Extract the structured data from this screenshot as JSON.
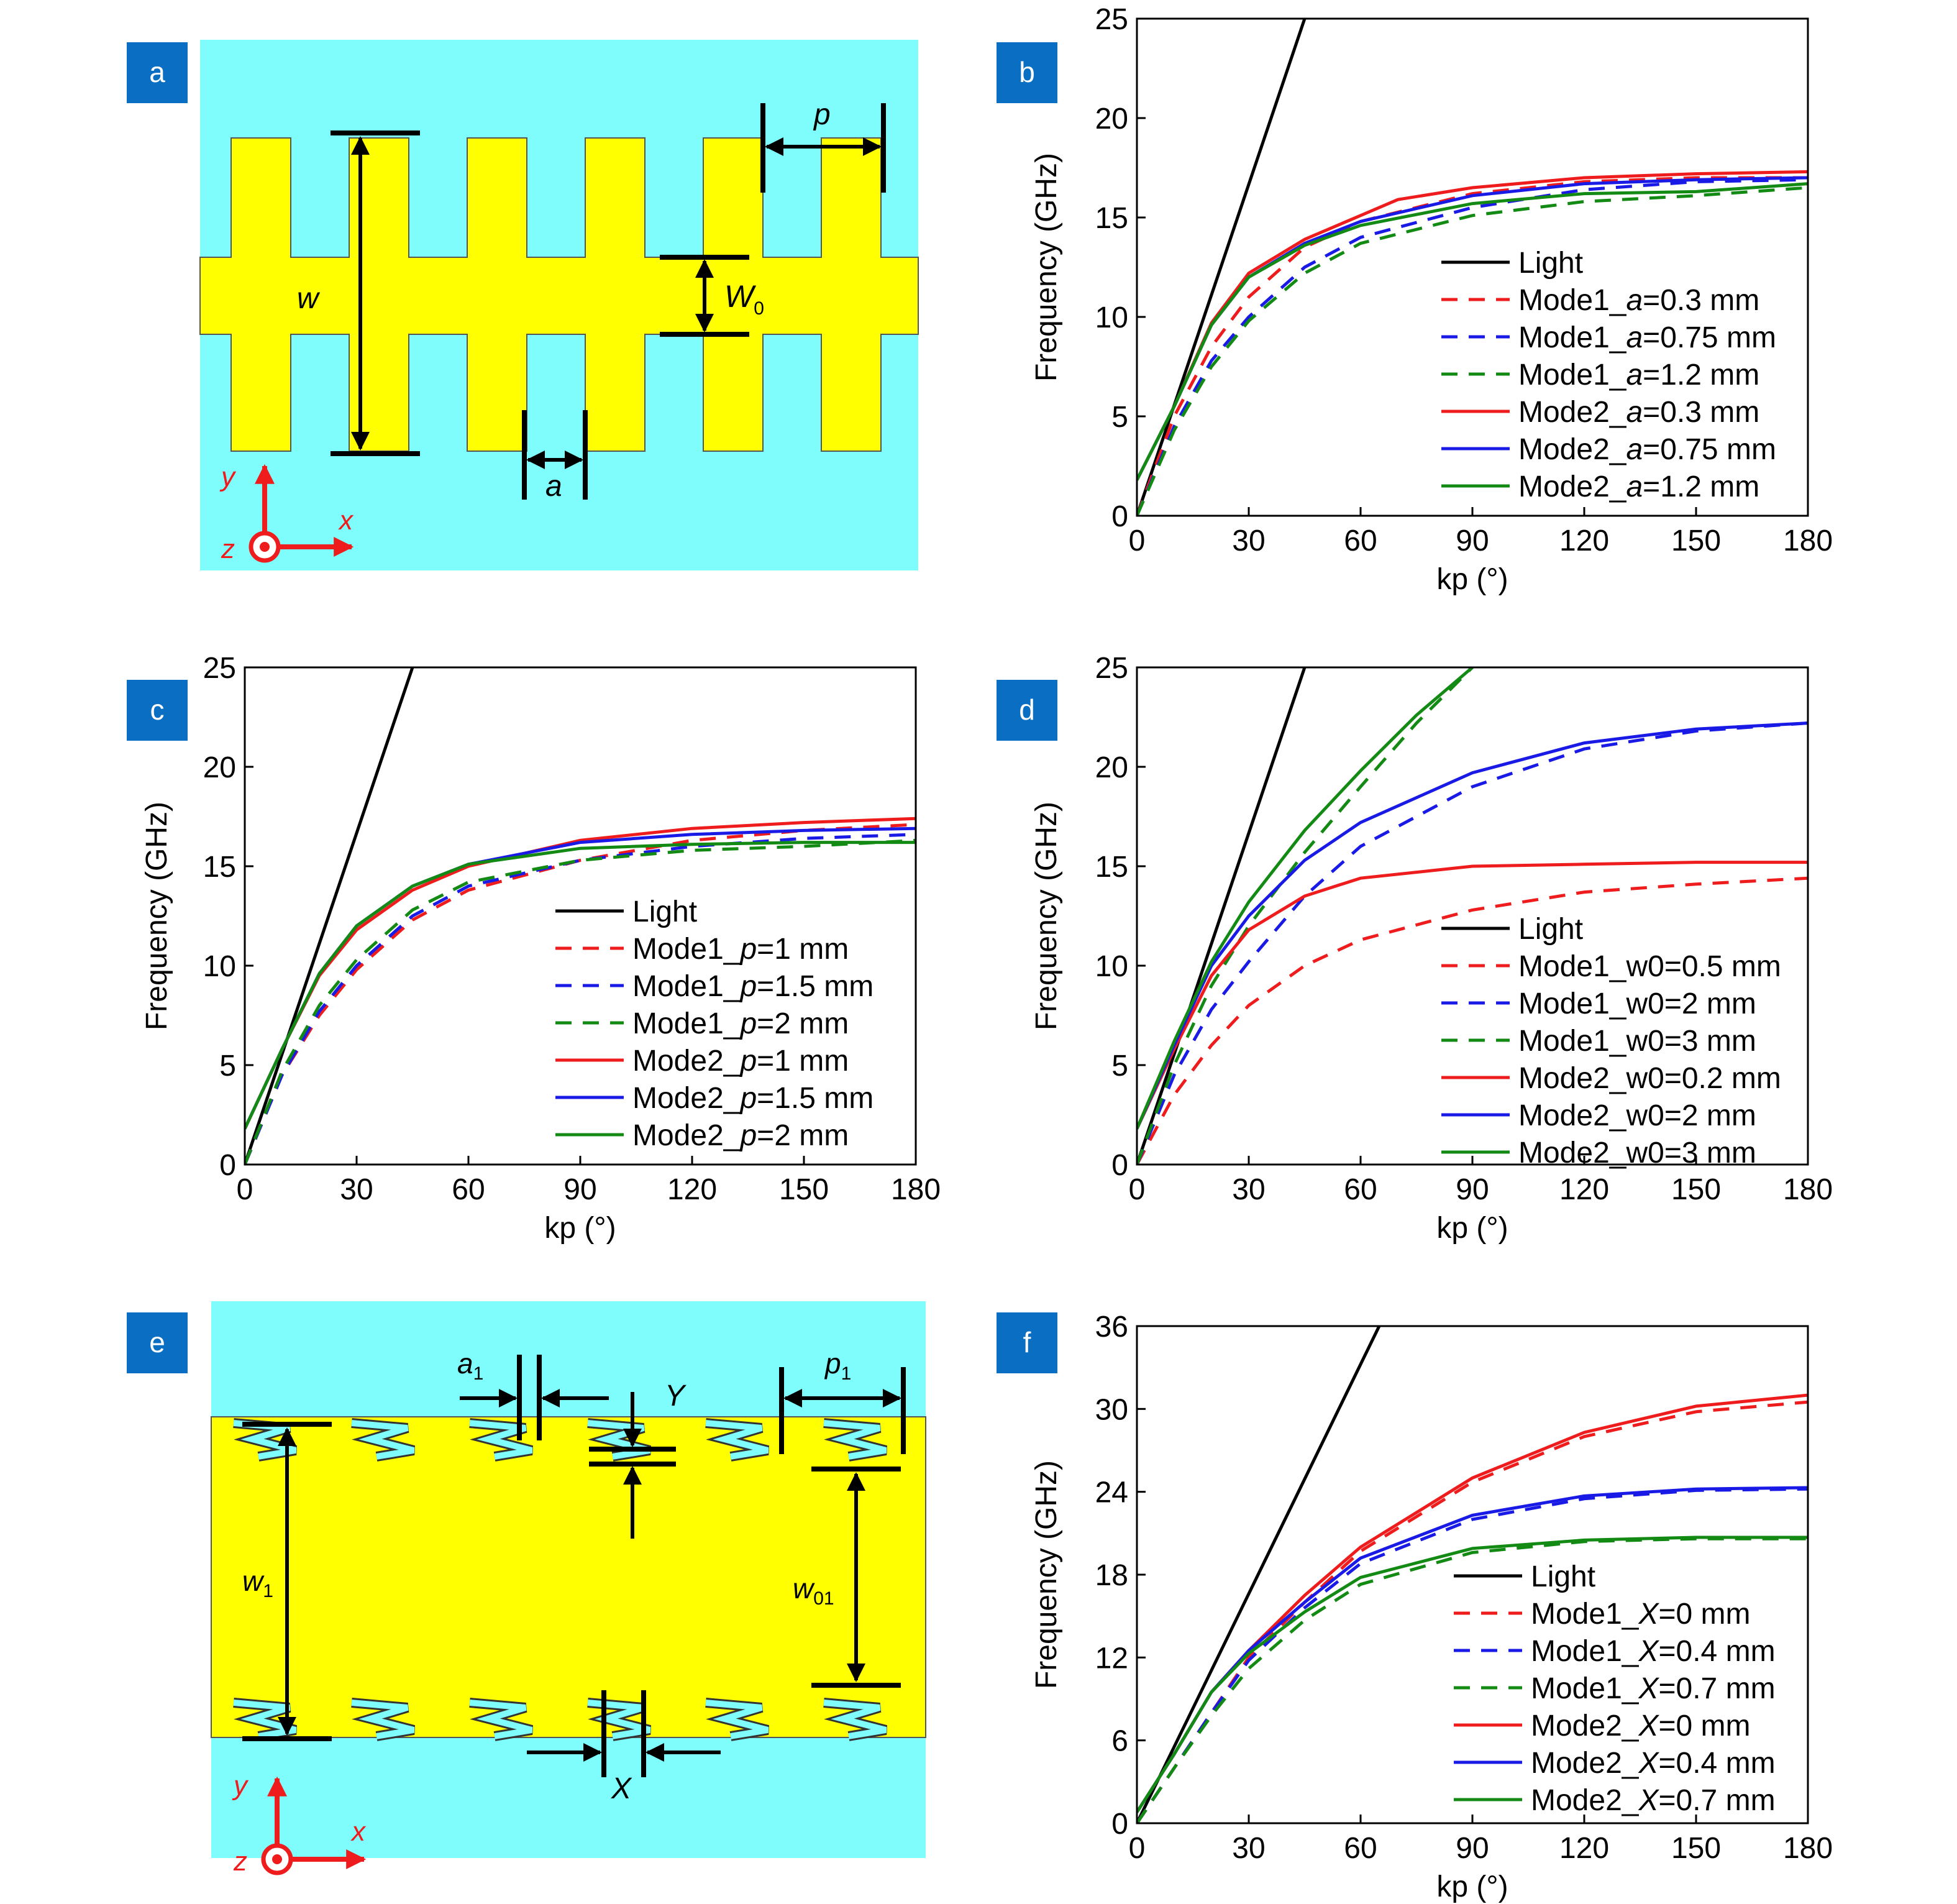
{
  "colors": {
    "cyan": "#7ffcfc",
    "yellow": "#ffff00",
    "badge": "#0a6fc2",
    "red": "#ee1c1c",
    "blue": "#1a1ae6",
    "green": "#138a13",
    "black": "#000000"
  },
  "panels": {
    "a": {
      "letter": "a",
      "labels": {
        "w": "w",
        "w0": "W",
        "w0_sub": "0",
        "a": "a",
        "p": "p",
        "y": "y",
        "x": "x",
        "z": "z"
      }
    },
    "e": {
      "letter": "e",
      "labels": {
        "a1": "a",
        "a1_sub": "1",
        "Y": "Y",
        "p1": "p",
        "p1_sub": "1",
        "w1": "w",
        "w1_sub": "1",
        "w01": "w",
        "w01_sub": "01",
        "X": "X",
        "y": "y",
        "x": "x",
        "z": "z"
      }
    }
  },
  "chart_data": [
    {
      "id": "b",
      "letter": "b",
      "type": "line",
      "xlabel": "kp (°)",
      "ylabel": "Frequency (GHz)",
      "xlim": [
        0,
        180
      ],
      "ylim": [
        0,
        25
      ],
      "xticks": [
        0,
        30,
        60,
        90,
        120,
        150,
        180
      ],
      "yticks": [
        0,
        5,
        10,
        15,
        20,
        25
      ],
      "legend_position": "lower-right",
      "series": [
        {
          "name": "Light",
          "color": "#000000",
          "dash": false,
          "x": [
            0,
            45
          ],
          "y": [
            0,
            25
          ]
        },
        {
          "name": "Mode1_a=0.3 mm",
          "color": "#ee1c1c",
          "dash": true,
          "x": [
            0,
            10,
            20,
            30,
            45,
            60,
            90,
            120,
            150,
            180
          ],
          "y": [
            0,
            5,
            8.5,
            11,
            13.5,
            14.8,
            16.2,
            16.8,
            17.0,
            17.0
          ]
        },
        {
          "name": "Mode1_a=0.75 mm",
          "color": "#1a1ae6",
          "dash": true,
          "x": [
            0,
            10,
            20,
            30,
            45,
            60,
            90,
            120,
            150,
            180
          ],
          "y": [
            0,
            4.5,
            7.8,
            10,
            12.5,
            14,
            15.5,
            16.4,
            16.8,
            16.9
          ]
        },
        {
          "name": "Mode1_a=1.2 mm",
          "color": "#138a13",
          "dash": true,
          "x": [
            0,
            10,
            20,
            30,
            45,
            60,
            90,
            120,
            150,
            180
          ],
          "y": [
            0,
            4.3,
            7.5,
            9.8,
            12.2,
            13.7,
            15.1,
            15.8,
            16.1,
            16.5
          ]
        },
        {
          "name": "Mode2_a=0.3 mm",
          "color": "#ee1c1c",
          "dash": false,
          "x": [
            0,
            10,
            20,
            30,
            45,
            60,
            70,
            90,
            120,
            150,
            180
          ],
          "y": [
            1.8,
            5.5,
            9.7,
            12.2,
            13.9,
            15.1,
            15.9,
            16.5,
            17.0,
            17.2,
            17.3
          ]
        },
        {
          "name": "Mode2_a=0.75 mm",
          "color": "#1a1ae6",
          "dash": false,
          "x": [
            0,
            10,
            20,
            30,
            45,
            60,
            90,
            120,
            150,
            180
          ],
          "y": [
            1.8,
            5.5,
            9.6,
            12.0,
            13.7,
            14.8,
            16.1,
            16.7,
            16.9,
            17.0
          ]
        },
        {
          "name": "Mode2_a=1.2 mm",
          "color": "#138a13",
          "dash": false,
          "x": [
            0,
            10,
            20,
            30,
            45,
            60,
            90,
            120,
            150,
            180
          ],
          "y": [
            1.8,
            5.5,
            9.6,
            12.0,
            13.6,
            14.6,
            15.7,
            16.2,
            16.3,
            16.7
          ]
        }
      ]
    },
    {
      "id": "c",
      "letter": "c",
      "type": "line",
      "xlabel": "kp (°)",
      "ylabel": "Frequency (GHz)",
      "xlim": [
        0,
        180
      ],
      "ylim": [
        0,
        25
      ],
      "xticks": [
        0,
        30,
        60,
        90,
        120,
        150,
        180
      ],
      "yticks": [
        0,
        5,
        10,
        15,
        20,
        25
      ],
      "legend_position": "lower-right",
      "series": [
        {
          "name": "Light",
          "color": "#000000",
          "dash": false,
          "x": [
            0,
            45
          ],
          "y": [
            0,
            25
          ]
        },
        {
          "name": "Mode1_p=1 mm",
          "color": "#ee1c1c",
          "dash": true,
          "x": [
            0,
            10,
            20,
            30,
            45,
            60,
            90,
            120,
            150,
            180
          ],
          "y": [
            0,
            4.5,
            7.5,
            9.8,
            12.3,
            13.8,
            15.3,
            16.3,
            16.8,
            17.1
          ]
        },
        {
          "name": "Mode1_p=1.5 mm",
          "color": "#1a1ae6",
          "dash": true,
          "x": [
            0,
            10,
            20,
            30,
            45,
            60,
            90,
            120,
            150,
            180
          ],
          "y": [
            0,
            4.5,
            7.7,
            10,
            12.5,
            14,
            15.3,
            16.0,
            16.4,
            16.6
          ]
        },
        {
          "name": "Mode1_p=2 mm",
          "color": "#138a13",
          "dash": true,
          "x": [
            0,
            10,
            20,
            30,
            45,
            60,
            90,
            120,
            150,
            180
          ],
          "y": [
            0,
            4.7,
            8,
            10.3,
            12.8,
            14.2,
            15.3,
            15.8,
            16.0,
            16.3
          ]
        },
        {
          "name": "Mode2_p=1 mm",
          "color": "#ee1c1c",
          "dash": false,
          "x": [
            0,
            10,
            20,
            30,
            45,
            60,
            90,
            120,
            150,
            180
          ],
          "y": [
            1.8,
            5.8,
            9.5,
            11.8,
            13.8,
            15,
            16.3,
            16.9,
            17.2,
            17.4
          ]
        },
        {
          "name": "Mode2_p=1.5 mm",
          "color": "#1a1ae6",
          "dash": false,
          "x": [
            0,
            10,
            20,
            30,
            45,
            60,
            90,
            120,
            150,
            180
          ],
          "y": [
            1.8,
            5.8,
            9.6,
            12.0,
            14.0,
            15.1,
            16.2,
            16.6,
            16.8,
            16.9
          ]
        },
        {
          "name": "Mode2_p=2 mm",
          "color": "#138a13",
          "dash": false,
          "x": [
            0,
            10,
            20,
            30,
            45,
            60,
            90,
            120,
            150,
            180
          ],
          "y": [
            1.8,
            5.8,
            9.6,
            12.0,
            14.0,
            15.1,
            15.9,
            16.1,
            16.2,
            16.2
          ]
        }
      ]
    },
    {
      "id": "d",
      "letter": "d",
      "type": "line",
      "xlabel": "kp (°)",
      "ylabel": "Frequency (GHz)",
      "xlim": [
        0,
        180
      ],
      "ylim": [
        0,
        25
      ],
      "xticks": [
        0,
        30,
        60,
        90,
        120,
        150,
        180
      ],
      "yticks": [
        0,
        5,
        10,
        15,
        20,
        25
      ],
      "legend_position": "lower-right",
      "series": [
        {
          "name": "Light",
          "color": "#000000",
          "dash": false,
          "x": [
            0,
            45
          ],
          "y": [
            0,
            25
          ]
        },
        {
          "name": "Mode1_w0=0.5 mm",
          "color": "#ee1c1c",
          "dash": true,
          "x": [
            0,
            10,
            20,
            30,
            45,
            60,
            90,
            120,
            150,
            180
          ],
          "y": [
            0,
            3.5,
            6,
            8,
            10,
            11.3,
            12.8,
            13.7,
            14.1,
            14.4
          ]
        },
        {
          "name": "Mode1_w0=2 mm",
          "color": "#1a1ae6",
          "dash": true,
          "x": [
            0,
            10,
            20,
            30,
            45,
            60,
            90,
            120,
            150,
            180
          ],
          "y": [
            0,
            4.5,
            7.8,
            10.2,
            13.5,
            16,
            19,
            20.9,
            21.8,
            22.2
          ]
        },
        {
          "name": "Mode1_w0=3 mm",
          "color": "#138a13",
          "dash": true,
          "x": [
            0,
            10,
            20,
            30,
            45,
            60,
            75,
            90
          ],
          "y": [
            0,
            5,
            9,
            12,
            15.7,
            19,
            22.2,
            25
          ]
        },
        {
          "name": "Mode2_w0=0.2 mm",
          "color": "#ee1c1c",
          "dash": false,
          "x": [
            0,
            10,
            20,
            30,
            45,
            60,
            90,
            120,
            150,
            180
          ],
          "y": [
            1.8,
            5.8,
            9.5,
            11.8,
            13.5,
            14.4,
            15.0,
            15.1,
            15.2,
            15.2
          ]
        },
        {
          "name": "Mode2_w0=2 mm",
          "color": "#1a1ae6",
          "dash": false,
          "x": [
            0,
            10,
            20,
            30,
            45,
            60,
            90,
            120,
            150,
            180
          ],
          "y": [
            1.8,
            6,
            10,
            12.5,
            15.3,
            17.2,
            19.7,
            21.2,
            21.9,
            22.2
          ]
        },
        {
          "name": "Mode2_w0=3 mm",
          "color": "#138a13",
          "dash": false,
          "x": [
            0,
            10,
            20,
            30,
            45,
            60,
            75,
            90
          ],
          "y": [
            1.8,
            6.2,
            10.2,
            13.2,
            16.8,
            19.8,
            22.6,
            25
          ]
        }
      ]
    },
    {
      "id": "f",
      "letter": "f",
      "type": "line",
      "xlabel": "kp (°)",
      "ylabel": "Frequency (GHz)",
      "xlim": [
        0,
        180
      ],
      "ylim": [
        0,
        36
      ],
      "xticks": [
        0,
        30,
        60,
        90,
        120,
        150,
        180
      ],
      "yticks": [
        0,
        6,
        12,
        18,
        24,
        30,
        36
      ],
      "legend_position": "lower-right",
      "series": [
        {
          "name": "Light",
          "color": "#000000",
          "dash": false,
          "x": [
            0,
            65
          ],
          "y": [
            0,
            36
          ]
        },
        {
          "name": "Mode1_X=0 mm",
          "color": "#ee1c1c",
          "dash": true,
          "x": [
            0,
            10,
            20,
            30,
            45,
            60,
            90,
            120,
            150,
            180
          ],
          "y": [
            0,
            4,
            8,
            12,
            16,
            19.7,
            24.7,
            28,
            29.8,
            30.5
          ]
        },
        {
          "name": "Mode1_X=0.4 mm",
          "color": "#1a1ae6",
          "dash": true,
          "x": [
            0,
            10,
            20,
            30,
            45,
            60,
            90,
            120,
            150,
            180
          ],
          "y": [
            0,
            4,
            8,
            11.8,
            15.6,
            18.8,
            22,
            23.5,
            24.1,
            24.2
          ]
        },
        {
          "name": "Mode1_X=0.7 mm",
          "color": "#138a13",
          "dash": true,
          "x": [
            0,
            10,
            20,
            30,
            45,
            60,
            90,
            120,
            150,
            180
          ],
          "y": [
            0,
            4,
            7.8,
            11.2,
            14.7,
            17.3,
            19.6,
            20.4,
            20.6,
            20.6
          ]
        },
        {
          "name": "Mode2_X=0 mm",
          "color": "#ee1c1c",
          "dash": false,
          "x": [
            0,
            10,
            20,
            30,
            45,
            60,
            90,
            120,
            150,
            180
          ],
          "y": [
            0.8,
            5,
            9.5,
            12.5,
            16.5,
            20,
            25,
            28.3,
            30.2,
            31
          ]
        },
        {
          "name": "Mode2_X=0.4 mm",
          "color": "#1a1ae6",
          "dash": false,
          "x": [
            0,
            10,
            20,
            30,
            45,
            60,
            90,
            120,
            150,
            180
          ],
          "y": [
            0.8,
            5,
            9.5,
            12.5,
            16,
            19.2,
            22.3,
            23.7,
            24.2,
            24.3
          ]
        },
        {
          "name": "Mode2_X=0.7 mm",
          "color": "#138a13",
          "dash": false,
          "x": [
            0,
            10,
            20,
            30,
            45,
            60,
            90,
            120,
            150,
            180
          ],
          "y": [
            0.8,
            5,
            9.5,
            12.3,
            15.3,
            17.8,
            19.9,
            20.5,
            20.7,
            20.7
          ]
        }
      ]
    }
  ]
}
